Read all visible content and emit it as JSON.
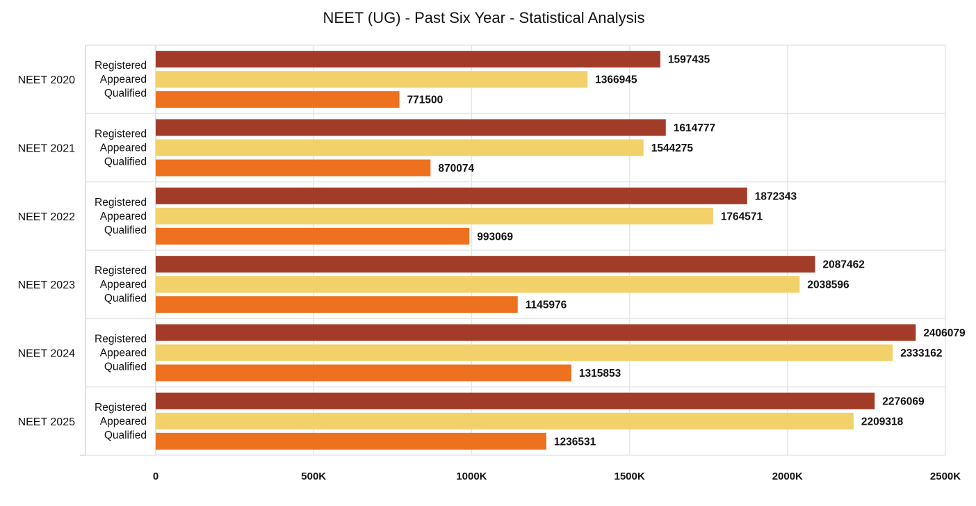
{
  "chart_data": {
    "type": "bar",
    "orientation": "horizontal",
    "title": "NEET (UG) - Past Six Year - Statistical Analysis",
    "xlabel": "",
    "ylabel": "",
    "xlim": [
      0,
      2500000
    ],
    "grid": true,
    "x_ticks": [
      {
        "value": 0,
        "label": "0"
      },
      {
        "value": 500000,
        "label": "500K"
      },
      {
        "value": 1000000,
        "label": "1000K"
      },
      {
        "value": 1500000,
        "label": "1500K"
      },
      {
        "value": 2000000,
        "label": "2000K"
      },
      {
        "value": 2500000,
        "label": "2500K"
      }
    ],
    "categories": [
      "NEET 2020",
      "NEET 2021",
      "NEET 2022",
      "NEET 2023",
      "NEET 2024",
      "NEET 2025"
    ],
    "series": [
      {
        "name": "Registered",
        "color": "#a23c28",
        "values": [
          1597435,
          1614777,
          1872343,
          2087462,
          2406079,
          2276069
        ]
      },
      {
        "name": "Appeared",
        "color": "#f2d16b",
        "values": [
          1366945,
          1544275,
          1764571,
          2038596,
          2333162,
          2209318
        ]
      },
      {
        "name": "Qualified",
        "color": "#ee711f",
        "values": [
          771500,
          870074,
          993069,
          1145976,
          1315853,
          1236531
        ]
      }
    ]
  }
}
